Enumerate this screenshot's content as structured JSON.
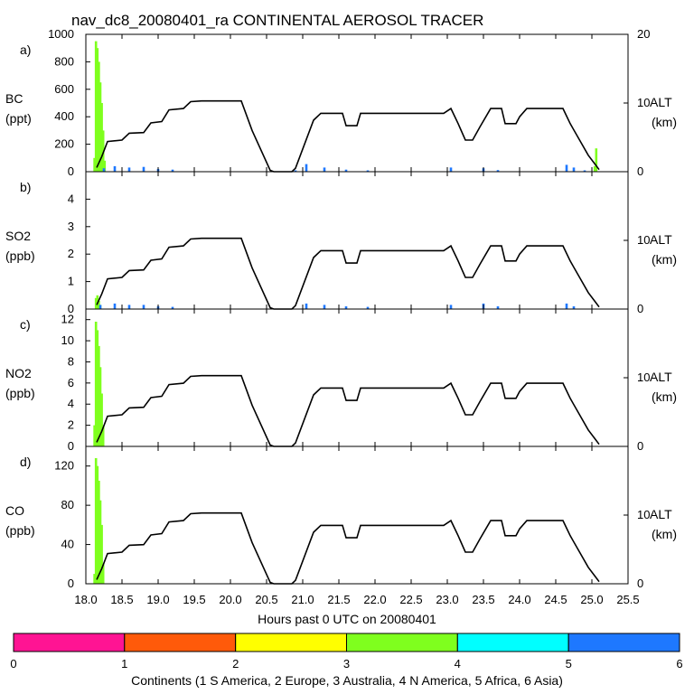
{
  "title": "nav_dc8_20080401_ra CONTINENTAL AEROSOL TRACER",
  "xlabel": "Hours past 0 UTC on 20080401",
  "colorbar": {
    "label": "Continents (1 S America, 2 Europe, 3 Australia, 4 N America, 5 Africa, 6 Asia)",
    "ticks": [
      "0",
      "1",
      "2",
      "3",
      "4",
      "5",
      "6"
    ],
    "colors": [
      "#ff1493",
      "#ff5a0a",
      "#ffff00",
      "#7fff1e",
      "#00ffff",
      "#1e78ff"
    ]
  },
  "line_color": "#000000",
  "chart_data": [
    {
      "type": "area",
      "panel": "a)",
      "ylabel_top": "BC",
      "ylabel_bottom": "(ppt)",
      "ylim": [
        0,
        1000
      ],
      "yticks": [
        "0",
        "200",
        "400",
        "600",
        "800",
        "1000"
      ],
      "xlim": [
        18.0,
        25.5
      ],
      "xticks": [
        "18.0",
        "18.5",
        "19.0",
        "19.5",
        "20.0",
        "20.5",
        "21.0",
        "21.5",
        "22.0",
        "22.5",
        "23.0",
        "23.5",
        "24.0",
        "24.5",
        "25.0",
        "25.5"
      ],
      "right_label_top": "ALT",
      "right_label_bottom": "(km)",
      "alt_ylim": [
        0,
        20
      ],
      "alt_ticks": [
        "0",
        "10",
        "20"
      ],
      "series": [
        {
          "name": "N America (4)",
          "color": "#7fff1e",
          "x": [
            18.12,
            18.14,
            18.16,
            18.18,
            18.2,
            18.22,
            18.24,
            18.26,
            25.04,
            25.06
          ],
          "values": [
            100,
            950,
            900,
            800,
            650,
            500,
            300,
            80,
            40,
            170
          ]
        },
        {
          "name": "Asia (6)",
          "color": "#1e78ff",
          "x": [
            18.25,
            18.4,
            18.6,
            18.8,
            19.0,
            19.2,
            20.9,
            21.05,
            21.3,
            21.6,
            21.9,
            23.05,
            23.5,
            23.7,
            24.65,
            24.75,
            24.9
          ],
          "values": [
            25,
            40,
            30,
            35,
            20,
            15,
            10,
            55,
            30,
            15,
            10,
            30,
            25,
            12,
            50,
            30,
            10
          ]
        }
      ]
    },
    {
      "type": "area",
      "panel": "b)",
      "ylabel_top": "SO2",
      "ylabel_bottom": "(ppb)",
      "ylim": [
        0,
        5
      ],
      "yticks": [
        "0",
        "1",
        "2",
        "3",
        "4"
      ],
      "xlim": [
        18.0,
        25.5
      ],
      "xticks": [
        "18.0",
        "18.5",
        "19.0",
        "19.5",
        "20.0",
        "20.5",
        "21.0",
        "21.5",
        "22.0",
        "22.5",
        "23.0",
        "23.5",
        "24.0",
        "24.5",
        "25.0",
        "25.5"
      ],
      "right_label_top": "ALT",
      "right_label_bottom": "(km)",
      "alt_ylim": [
        0,
        20
      ],
      "alt_ticks": [
        "0",
        "10"
      ],
      "series": [
        {
          "name": "N America (4)",
          "color": "#7fff1e",
          "x": [
            18.14,
            18.16,
            18.18,
            18.2
          ],
          "values": [
            0.4,
            0.5,
            0.3,
            0.15
          ]
        },
        {
          "name": "Asia (6)",
          "color": "#1e78ff",
          "x": [
            18.2,
            18.4,
            18.6,
            18.8,
            19.0,
            19.2,
            21.05,
            21.3,
            21.6,
            21.9,
            23.05,
            23.5,
            23.7,
            24.65,
            24.75
          ],
          "values": [
            0.15,
            0.2,
            0.15,
            0.15,
            0.1,
            0.08,
            0.2,
            0.15,
            0.1,
            0.08,
            0.15,
            0.2,
            0.1,
            0.2,
            0.1
          ]
        }
      ]
    },
    {
      "type": "area",
      "panel": "c)",
      "ylabel_top": "NO2",
      "ylabel_bottom": "(ppb)",
      "ylim": [
        0,
        13
      ],
      "yticks": [
        "0",
        "2",
        "4",
        "6",
        "8",
        "10",
        "12"
      ],
      "xlim": [
        18.0,
        25.5
      ],
      "xticks": [
        "18.0",
        "18.5",
        "19.0",
        "19.5",
        "20.0",
        "20.5",
        "21.0",
        "21.5",
        "22.0",
        "22.5",
        "23.0",
        "23.5",
        "24.0",
        "24.5",
        "25.0",
        "25.5"
      ],
      "right_label_top": "ALT",
      "right_label_bottom": "(km)",
      "alt_ylim": [
        0,
        20
      ],
      "alt_ticks": [
        "0",
        "10"
      ],
      "series": [
        {
          "name": "N America (4)",
          "color": "#7fff1e",
          "x": [
            18.12,
            18.14,
            18.16,
            18.18,
            18.2,
            18.22,
            18.24
          ],
          "values": [
            2,
            11.8,
            11,
            9.5,
            7.5,
            5,
            2
          ]
        }
      ]
    },
    {
      "type": "area",
      "panel": "d)",
      "ylabel_top": "CO",
      "ylabel_bottom": "(ppb)",
      "ylim": [
        0,
        140
      ],
      "yticks": [
        "0",
        "40",
        "80",
        "120"
      ],
      "xlim": [
        18.0,
        25.5
      ],
      "xticks": [
        "18.0",
        "18.5",
        "19.0",
        "19.5",
        "20.0",
        "20.5",
        "21.0",
        "21.5",
        "22.0",
        "22.5",
        "23.0",
        "23.5",
        "24.0",
        "24.5",
        "25.0",
        "25.5"
      ],
      "right_label_top": "ALT",
      "right_label_bottom": "(km)",
      "alt_ylim": [
        0,
        20
      ],
      "alt_ticks": [
        "0",
        "10"
      ],
      "series": [
        {
          "name": "N America (4)",
          "color": "#7fff1e",
          "x": [
            18.12,
            18.14,
            18.16,
            18.18,
            18.2,
            18.22,
            18.24
          ],
          "values": [
            10,
            128,
            120,
            105,
            85,
            60,
            20
          ]
        }
      ]
    }
  ],
  "altitude_profile": {
    "name": "ALT",
    "units": "km",
    "x": [
      18.15,
      18.22,
      18.3,
      18.5,
      18.6,
      18.8,
      18.9,
      19.05,
      19.15,
      19.35,
      19.45,
      19.6,
      19.7,
      20.15,
      20.3,
      20.55,
      20.6,
      20.85,
      20.9,
      21.15,
      21.25,
      21.55,
      21.6,
      21.75,
      21.8,
      22.95,
      23.05,
      23.15,
      23.25,
      23.35,
      23.45,
      23.6,
      23.75,
      23.8,
      23.95,
      24.0,
      24.1,
      24.2,
      24.6,
      24.7,
      24.95,
      25.05,
      25.1
    ],
    "values": [
      0.6,
      2.2,
      4.4,
      4.6,
      5.6,
      5.7,
      7.1,
      7.3,
      9.0,
      9.2,
      10.2,
      10.3,
      10.3,
      10.3,
      6.0,
      0.2,
      0.0,
      0.0,
      0.5,
      7.5,
      8.5,
      8.5,
      6.7,
      6.7,
      8.5,
      8.5,
      9.2,
      7.0,
      4.6,
      4.6,
      6.5,
      9.2,
      9.2,
      7.0,
      7.0,
      8.0,
      9.2,
      9.2,
      9.2,
      7.0,
      2.4,
      1.0,
      0.3
    ]
  }
}
